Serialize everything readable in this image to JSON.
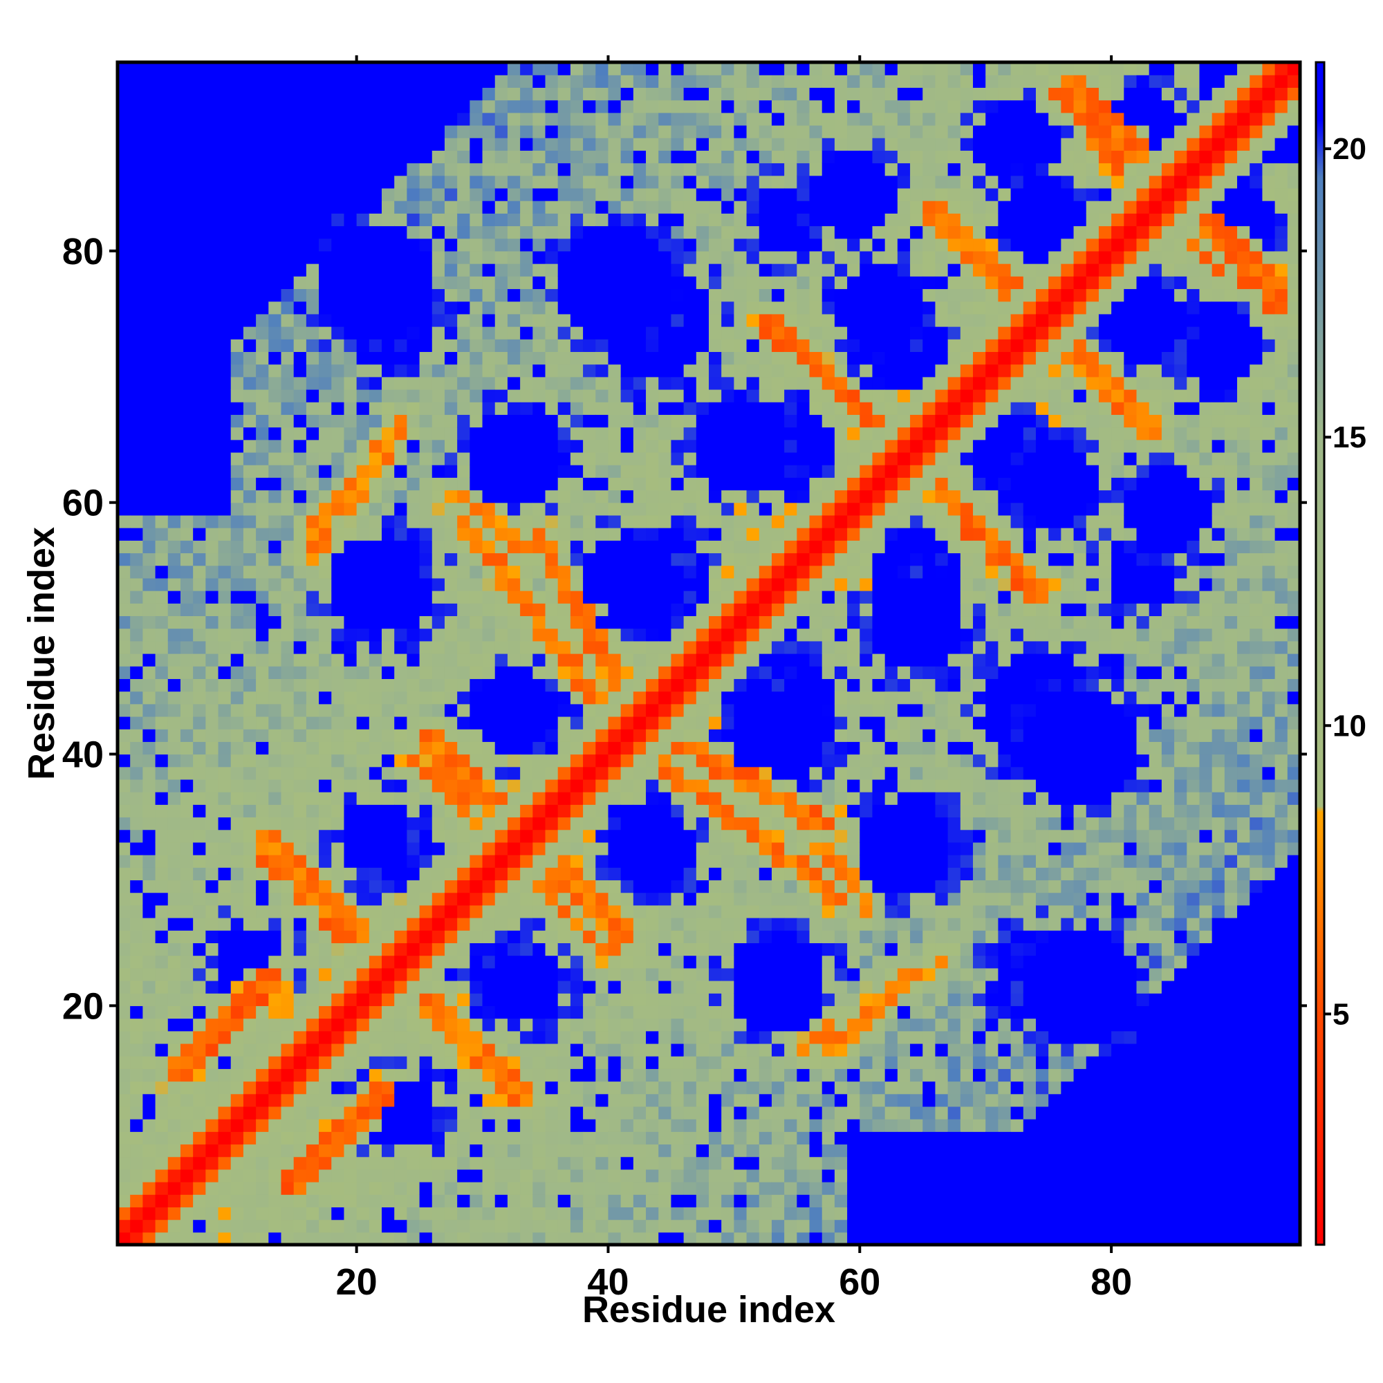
{
  "chart_data": {
    "type": "heatmap",
    "title": "",
    "xlabel": "Residue index",
    "ylabel": "Residue index",
    "n_residues": 94,
    "xlim": [
      1,
      95
    ],
    "ylim": [
      1,
      95
    ],
    "x_ticks": [
      20,
      40,
      60,
      80
    ],
    "y_ticks": [
      20,
      40,
      60,
      80
    ],
    "colorbar": {
      "ticks": [
        5,
        10,
        15,
        20
      ],
      "range": [
        1,
        21.5
      ],
      "stops": [
        {
          "value": 1,
          "color": "#ff0000"
        },
        {
          "value": 5,
          "color": "#ff4a00"
        },
        {
          "value": 8.5,
          "color": "#ffa500"
        },
        {
          "value": 8.6,
          "color": "#a7bd7e"
        },
        {
          "value": 15,
          "color": "#9fb889"
        },
        {
          "value": 19.5,
          "color": "#4f7fbf"
        },
        {
          "value": 20.5,
          "color": "#0000ff"
        },
        {
          "value": 21.5,
          "color": "#0000ff"
        }
      ]
    },
    "cap_value": 21.5,
    "diagonal_band": [
      {
        "offset": 0,
        "value": 1.0
      },
      {
        "offset": 1,
        "value": 2.5
      },
      {
        "offset": 2,
        "value": 6.0
      },
      {
        "offset": 3,
        "value": 9.5
      },
      {
        "offset": 4,
        "value": 11.0
      }
    ],
    "contact_ridges": [
      {
        "i_start": 5,
        "j_start": 14,
        "i_end": 13,
        "j_end": 22,
        "value": 4.5
      },
      {
        "i_start": 12,
        "j_start": 33,
        "i_end": 22,
        "j_end": 23,
        "value": 5.5
      },
      {
        "i_start": 23,
        "j_start": 21,
        "i_end": 32,
        "j_end": 12,
        "value": 5.0
      },
      {
        "i_start": 25,
        "j_start": 41,
        "i_end": 32,
        "j_end": 34,
        "value": 5.5
      },
      {
        "i_start": 33,
        "j_start": 30,
        "i_end": 40,
        "j_end": 24,
        "value": 5.5
      },
      {
        "i_start": 34,
        "j_start": 57,
        "i_end": 42,
        "j_end": 42,
        "value": 5.0
      },
      {
        "i_start": 42,
        "j_start": 40,
        "i_end": 58,
        "j_end": 28,
        "value": 5.5
      },
      {
        "i_start": 16,
        "j_start": 57,
        "i_end": 22,
        "j_end": 64,
        "value": 6.0
      },
      {
        "i_start": 27,
        "j_start": 60,
        "i_end": 35,
        "j_end": 55,
        "value": 6.0
      },
      {
        "i_start": 52,
        "j_start": 74,
        "i_end": 62,
        "j_end": 65,
        "value": 5.0
      },
      {
        "i_start": 64,
        "j_start": 62,
        "i_end": 74,
        "j_end": 52,
        "value": 5.0
      },
      {
        "i_start": 65,
        "j_start": 83,
        "i_end": 72,
        "j_end": 76,
        "value": 5.5
      },
      {
        "i_start": 74,
        "j_start": 74,
        "i_end": 82,
        "j_end": 66,
        "value": 5.5
      },
      {
        "i_start": 76,
        "j_start": 93,
        "i_end": 83,
        "j_end": 86,
        "value": 5.0
      },
      {
        "i_start": 84,
        "j_start": 82,
        "i_end": 93,
        "j_end": 75,
        "value": 5.0
      },
      {
        "i_start": 55,
        "j_start": 16,
        "i_end": 66,
        "j_end": 23,
        "value": 6.0
      }
    ],
    "empty_regions": [
      {
        "i_center": 21,
        "j_center": 77,
        "radius": 4.5
      },
      {
        "i_center": 40,
        "j_center": 77,
        "radius": 4.5
      },
      {
        "i_center": 59,
        "j_center": 84,
        "radius": 3.5
      },
      {
        "i_center": 32,
        "j_center": 63,
        "radius": 4.0
      },
      {
        "i_center": 50,
        "j_center": 64,
        "radius": 4.0
      },
      {
        "i_center": 21,
        "j_center": 53,
        "radius": 4.0
      },
      {
        "i_center": 41,
        "j_center": 53,
        "radius": 4.0
      },
      {
        "i_center": 21,
        "j_center": 33,
        "radius": 3.0
      },
      {
        "i_center": 32,
        "j_center": 43,
        "radius": 3.5
      },
      {
        "i_center": 42,
        "j_center": 33,
        "radius": 3.0
      },
      {
        "i_center": 32,
        "j_center": 22,
        "radius": 3.5
      },
      {
        "i_center": 11,
        "j_center": 23,
        "radius": 3.0
      },
      {
        "i_center": 61,
        "j_center": 75,
        "radius": 3.5
      },
      {
        "i_center": 72,
        "j_center": 63,
        "radius": 3.5
      },
      {
        "i_center": 82,
        "j_center": 74,
        "radius": 3.5
      },
      {
        "i_center": 82,
        "j_center": 89,
        "radius": 3.5
      },
      {
        "i_center": 72,
        "j_center": 88,
        "radius": 3.5
      },
      {
        "i_center": 64,
        "j_center": 54,
        "radius": 3.5
      },
      {
        "i_center": 82,
        "j_center": 54,
        "radius": 3.0
      },
      {
        "i_center": 53,
        "j_center": 43,
        "radius": 4.5
      },
      {
        "i_center": 74,
        "j_center": 43,
        "radius": 5.0
      },
      {
        "i_center": 64,
        "j_center": 33,
        "radius": 3.5
      },
      {
        "i_center": 53,
        "j_center": 22,
        "radius": 4.0
      },
      {
        "i_center": 74,
        "j_center": 22,
        "radius": 4.0
      }
    ],
    "far_cutoff_regions": [
      {
        "description_corner": "top-left",
        "i_max": 14,
        "j_min": 60
      },
      {
        "description_corner": "top-right",
        "i_min": 88,
        "j_min": 89
      },
      {
        "description_corner": "bottom-right",
        "i_min": 60,
        "j_max": 15
      },
      {
        "description_corner": "right",
        "i_min": 90,
        "j_max": 48
      }
    ]
  }
}
